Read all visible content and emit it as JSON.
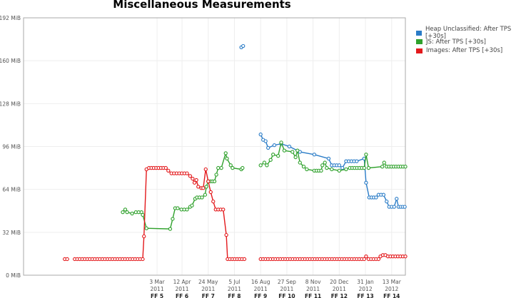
{
  "chart_data": {
    "type": "line",
    "title": "Miscellaneous Measurements",
    "x_reference_date": "3 Mar 2011",
    "xlim_days": [
      -214,
      398
    ],
    "ylim": [
      0,
      192
    ],
    "yticks": [
      {
        "v": 0,
        "label": "0 MiB"
      },
      {
        "v": 32,
        "label": "32 MiB"
      },
      {
        "v": 64,
        "label": "64 MiB"
      },
      {
        "v": 96,
        "label": "96 MiB"
      },
      {
        "v": 128,
        "label": "128 MiB"
      },
      {
        "v": 160,
        "label": "160 MiB"
      },
      {
        "v": 192,
        "label": "192 MiB"
      }
    ],
    "xticks": [
      {
        "day": 0,
        "date": "3 Mar",
        "year": "2011",
        "release": "FF 5"
      },
      {
        "day": 40,
        "date": "12 Apr",
        "year": "2011",
        "release": "FF 6"
      },
      {
        "day": 82,
        "date": "24 May",
        "year": "2011",
        "release": "FF 7"
      },
      {
        "day": 124,
        "date": "5 Jul",
        "year": "2011",
        "release": "FF 8"
      },
      {
        "day": 166,
        "date": "16 Aug",
        "year": "2011",
        "release": "FF 9"
      },
      {
        "day": 208,
        "date": "27 Sep",
        "year": "2011",
        "release": "FF 10"
      },
      {
        "day": 250,
        "date": "8 Nov",
        "year": "2011",
        "release": "FF 11"
      },
      {
        "day": 292,
        "date": "20 Dec",
        "year": "2011",
        "release": "FF 12"
      },
      {
        "day": 334,
        "date": "31 Jan",
        "year": "2012",
        "release": "FF 13"
      },
      {
        "day": 376,
        "date": "13 Mar",
        "year": "2012",
        "release": "FF 14"
      }
    ],
    "legend_position": "right",
    "series": [
      {
        "name": "Heap Unclassified: After TPS [+30s]",
        "color": "#2a7cc7",
        "points": [
          [
            135,
            170
          ],
          [
            138,
            171
          ],
          null,
          [
            166,
            105
          ],
          [
            170,
            101
          ],
          [
            174,
            100
          ],
          [
            178,
            95
          ],
          [
            188,
            97
          ],
          [
            199,
            98
          ],
          [
            212,
            96
          ],
          [
            229,
            92
          ],
          [
            252,
            90
          ],
          [
            275,
            87
          ],
          [
            280,
            82
          ],
          [
            292,
            82
          ],
          [
            297,
            80
          ],
          [
            303,
            85
          ],
          [
            320,
            85
          ],
          [
            332,
            87
          ],
          [
            335,
            69
          ],
          [
            340,
            58
          ],
          [
            351,
            58
          ],
          [
            355,
            60
          ],
          [
            363,
            60
          ],
          [
            368,
            55
          ],
          [
            372,
            51
          ],
          [
            380,
            51
          ],
          [
            384,
            57
          ],
          [
            387,
            51
          ],
          [
            397,
            51
          ]
        ]
      },
      {
        "name": "JS: After TPS [+30s]",
        "color": "#2fa12c",
        "points": [
          [
            -55,
            47
          ],
          [
            -51,
            49
          ],
          [
            -48,
            47
          ],
          [
            -40,
            46
          ],
          [
            -34,
            47
          ],
          [
            -25,
            47
          ],
          [
            -23,
            45
          ],
          [
            -17,
            35
          ],
          [
            21,
            34.5
          ],
          [
            25,
            42
          ],
          [
            29,
            50
          ],
          [
            33,
            50
          ],
          [
            39,
            49
          ],
          [
            48,
            49
          ],
          [
            53,
            51
          ],
          [
            56,
            52
          ],
          [
            61,
            57
          ],
          [
            64,
            58
          ],
          [
            72,
            58
          ],
          [
            77,
            60
          ],
          [
            79,
            66
          ],
          [
            82,
            70
          ],
          [
            92,
            70
          ],
          [
            95,
            75
          ],
          [
            98,
            80
          ],
          [
            103,
            80
          ],
          [
            110,
            91
          ],
          [
            112,
            87
          ],
          [
            118,
            82
          ],
          [
            121,
            80
          ],
          [
            135,
            79
          ],
          [
            137,
            80
          ],
          null,
          [
            166,
            82
          ],
          [
            172,
            84
          ],
          [
            176,
            82
          ],
          [
            182,
            86
          ],
          [
            186,
            90
          ],
          [
            194,
            89
          ],
          [
            199,
            99
          ],
          [
            204,
            93
          ],
          [
            217,
            92
          ],
          [
            222,
            88
          ],
          [
            225,
            93
          ],
          [
            229,
            84
          ],
          [
            235,
            81
          ],
          [
            240,
            79
          ],
          [
            252,
            78
          ],
          [
            263,
            78
          ],
          [
            265,
            82
          ],
          [
            269,
            84
          ],
          [
            272,
            80
          ],
          [
            280,
            79
          ],
          [
            292,
            78
          ],
          [
            303,
            79
          ],
          [
            309,
            80
          ],
          [
            332,
            80
          ],
          [
            335,
            90
          ],
          [
            339,
            80
          ],
          [
            361,
            81
          ],
          [
            364,
            84
          ],
          [
            368,
            81
          ],
          [
            398,
            81
          ]
        ]
      },
      {
        "name": "Images: After TPS [+30s]",
        "color": "#e3191c",
        "points": [
          [
            -148,
            12
          ],
          [
            -144,
            12
          ],
          null,
          [
            -132,
            12
          ],
          [
            -23,
            12
          ],
          [
            -21,
            29
          ],
          [
            -17,
            79
          ],
          [
            -13,
            80
          ],
          [
            14,
            80
          ],
          [
            18,
            78
          ],
          [
            23,
            76
          ],
          [
            48,
            76
          ],
          [
            53,
            74
          ],
          [
            57,
            72
          ],
          [
            60,
            69
          ],
          [
            63,
            71
          ],
          [
            66,
            66
          ],
          [
            71,
            65
          ],
          [
            74,
            65
          ],
          [
            78,
            79
          ],
          [
            82,
            70
          ],
          [
            86,
            62
          ],
          [
            90,
            55
          ],
          [
            94,
            49
          ],
          [
            106,
            49
          ],
          [
            111,
            30
          ],
          [
            113,
            12
          ],
          [
            140,
            12
          ],
          null,
          [
            166,
            12
          ],
          [
            332,
            12
          ],
          [
            335,
            14
          ],
          [
            339,
            12
          ],
          [
            355,
            12
          ],
          [
            358,
            14
          ],
          [
            362,
            15
          ],
          [
            366,
            15
          ],
          [
            370,
            14
          ],
          [
            398,
            14
          ]
        ]
      }
    ]
  }
}
